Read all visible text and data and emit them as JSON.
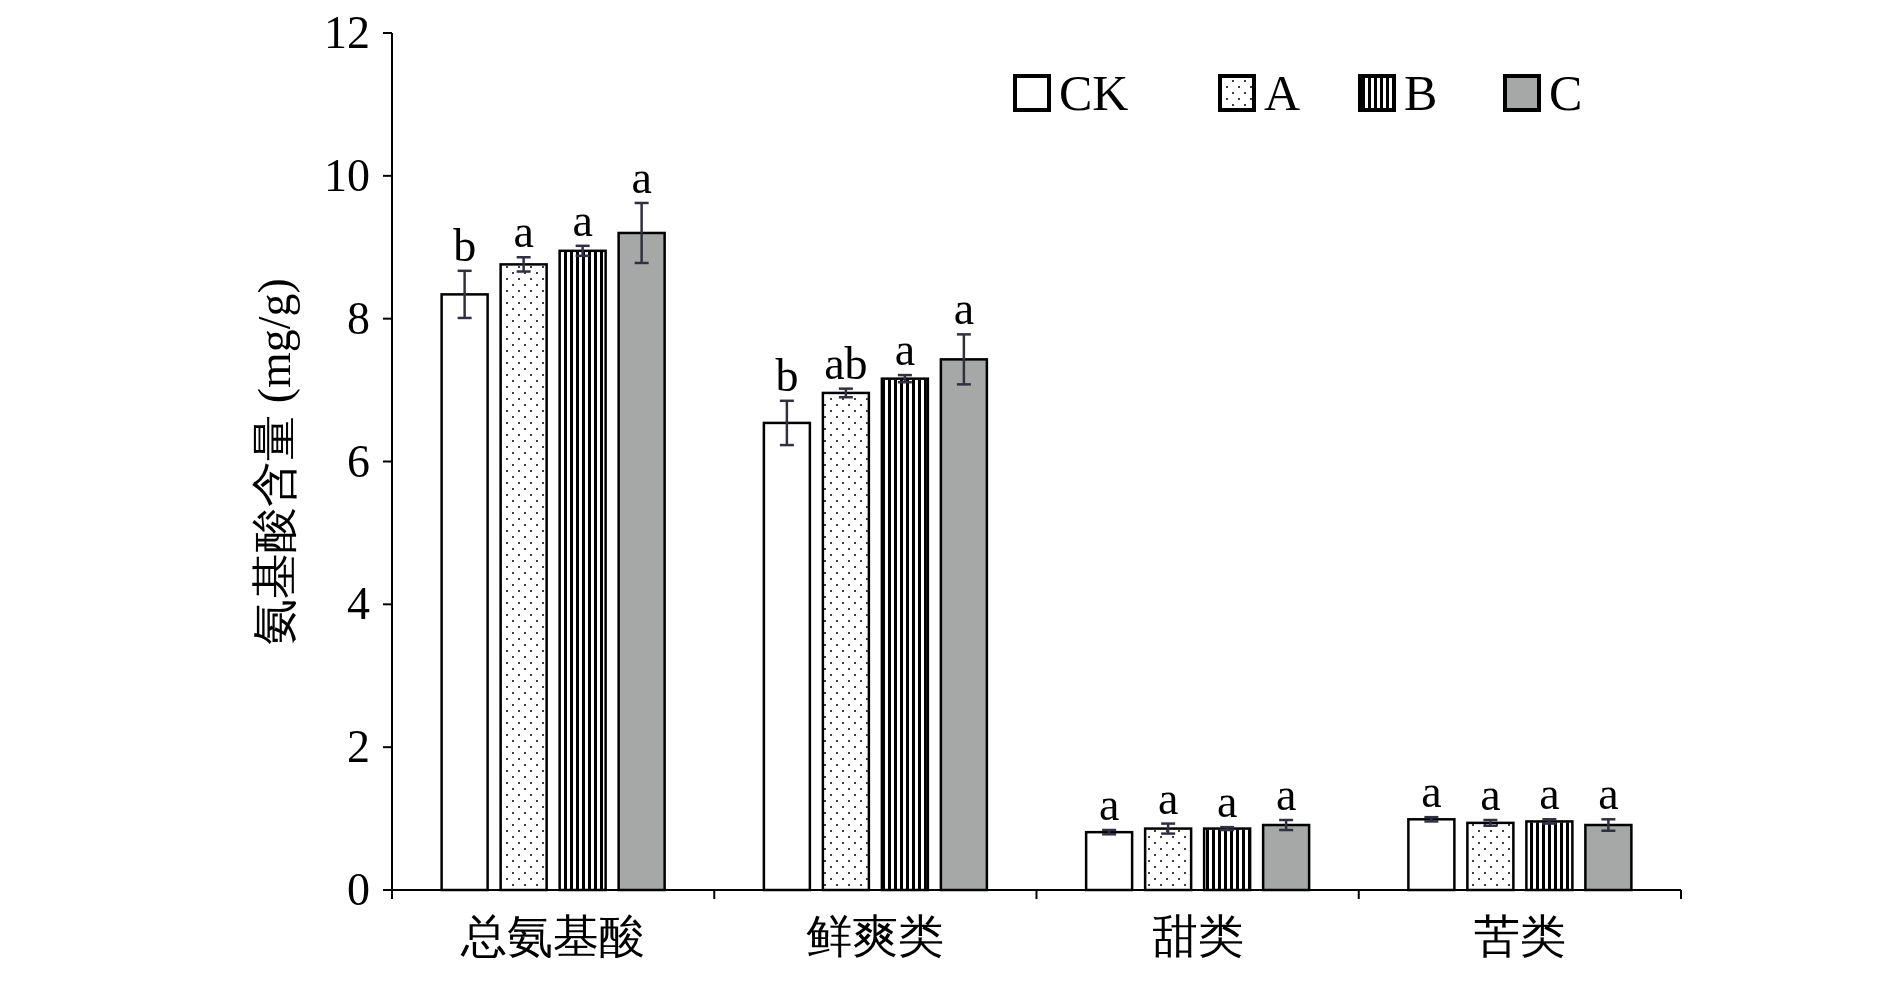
{
  "chart_data": {
    "type": "bar",
    "ylabel": "氨基酸含量 (mg/g)",
    "categories": [
      "总氨基酸",
      "鲜爽类",
      "甜类",
      "苦类"
    ],
    "series": [
      {
        "name": "CK",
        "color": "#ffffff",
        "values": [
          8.34,
          6.54,
          0.81,
          0.99
        ],
        "errors": [
          0.33,
          0.31,
          0.03,
          0.03
        ],
        "value_labels": [
          "b",
          "b",
          "a",
          "a"
        ]
      },
      {
        "name": "A",
        "color": "#ffffff",
        "values": [
          8.76,
          6.96,
          0.86,
          0.94
        ],
        "errors": [
          0.1,
          0.06,
          0.07,
          0.04
        ],
        "value_labels": [
          "a",
          "ab",
          "a",
          "a"
        ]
      },
      {
        "name": "B",
        "color": "#ffffff",
        "values": [
          8.95,
          7.16,
          0.86,
          0.96
        ],
        "errors": [
          0.07,
          0.05,
          0.02,
          0.03
        ],
        "value_labels": [
          "a",
          "a",
          "a",
          "a"
        ]
      },
      {
        "name": "C",
        "color": "#a6a8a8",
        "values": [
          9.2,
          7.43,
          0.91,
          0.91
        ],
        "errors": [
          0.42,
          0.35,
          0.07,
          0.08
        ],
        "value_labels": [
          "a",
          "a",
          "a",
          "a"
        ]
      }
    ],
    "ylim": [
      0,
      12
    ],
    "yticks": [
      0,
      2,
      4,
      6,
      8,
      10,
      12
    ],
    "grid": false,
    "legend": "top right"
  }
}
